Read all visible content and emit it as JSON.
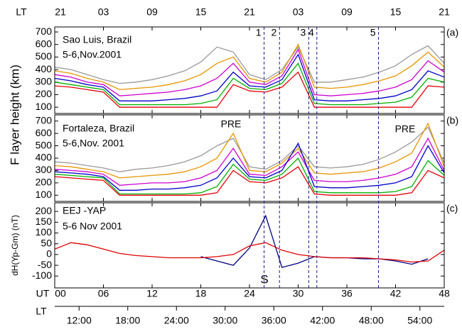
{
  "figure": {
    "x": [
      0,
      2,
      4,
      6,
      8,
      10,
      12,
      14,
      16,
      18,
      20,
      22,
      24,
      26,
      28,
      30,
      32,
      34,
      36,
      38,
      40,
      42,
      44,
      46,
      48
    ],
    "xlim": [
      0,
      48
    ],
    "ut_label": "UT",
    "ut_ticks": [
      {
        "value": 0,
        "label": "00"
      },
      {
        "value": 6,
        "label": "06"
      },
      12,
      18,
      24,
      30,
      36,
      42,
      48
    ],
    "lt_top_label": "LT",
    "lt_top_ticks": [
      {
        "value": 0,
        "label": "21"
      },
      {
        "value": 6,
        "label": "03"
      },
      {
        "value": 12,
        "label": "09"
      },
      {
        "value": 18,
        "label": "15"
      },
      {
        "value": 24,
        "label": "21"
      },
      {
        "value": 30,
        "label": "03"
      },
      {
        "value": 36,
        "label": "09"
      },
      {
        "value": 42,
        "label": "15"
      },
      {
        "value": 48,
        "label": "21"
      }
    ],
    "lt_bottom_label": "LT",
    "lt_bottom_ticks": [
      {
        "value": 3,
        "label": "12:00"
      },
      {
        "value": 9,
        "label": "18:00"
      },
      {
        "value": 15,
        "label": "24:00"
      },
      {
        "value": 21,
        "label": "30:00"
      },
      {
        "value": 27,
        "label": "36:00"
      },
      {
        "value": 33,
        "label": "42:00"
      },
      {
        "value": 39,
        "label": "48:00"
      },
      {
        "value": 45,
        "label": "54:00"
      }
    ],
    "events": [
      {
        "value": 25.8,
        "label": "1"
      },
      {
        "value": 27.7,
        "label": "2"
      },
      {
        "value": 31.3,
        "label": "3"
      },
      {
        "value": 32.3,
        "label": "4"
      },
      {
        "value": 39.9,
        "label": "5"
      }
    ],
    "ylabel_ab": "F layer height (km)"
  },
  "chart_data": [
    {
      "type": "line",
      "panel": "(a)",
      "annotations": [
        "Sao Luis, Brazil",
        "5-6,Nov.2001"
      ],
      "ylim": [
        50,
        740
      ],
      "yticks": [
        100,
        200,
        300,
        400,
        500,
        600,
        700
      ],
      "series": [
        {
          "color": "#999999",
          "values": [
            420,
            400,
            360,
            320,
            290,
            300,
            320,
            350,
            390,
            460,
            580,
            540,
            360,
            320,
            400,
            580,
            300,
            300,
            320,
            340,
            380,
            430,
            520,
            590,
            450
          ]
        },
        {
          "color": "#e69500",
          "values": [
            390,
            370,
            330,
            300,
            240,
            250,
            260,
            280,
            310,
            360,
            450,
            500,
            330,
            300,
            380,
            600,
            260,
            250,
            260,
            280,
            310,
            350,
            430,
            540,
            420
          ]
        },
        {
          "color": "#d000d0",
          "values": [
            360,
            340,
            300,
            280,
            190,
            200,
            210,
            220,
            240,
            270,
            330,
            450,
            300,
            280,
            350,
            560,
            200,
            190,
            200,
            210,
            230,
            260,
            320,
            470,
            380
          ]
        },
        {
          "color": "#0000cc",
          "values": [
            330,
            310,
            280,
            260,
            150,
            150,
            150,
            160,
            170,
            190,
            230,
            380,
            270,
            260,
            320,
            520,
            160,
            150,
            150,
            160,
            170,
            190,
            240,
            390,
            340
          ]
        },
        {
          "color": "#00b000",
          "values": [
            300,
            280,
            260,
            240,
            120,
            120,
            120,
            120,
            120,
            130,
            160,
            330,
            250,
            240,
            290,
            450,
            130,
            120,
            120,
            120,
            130,
            140,
            180,
            330,
            300
          ]
        },
        {
          "color": "#e8000b",
          "values": [
            270,
            260,
            240,
            220,
            100,
            100,
            100,
            100,
            100,
            100,
            100,
            280,
            230,
            220,
            260,
            380,
            100,
            100,
            100,
            100,
            100,
            100,
            100,
            270,
            260
          ]
        }
      ]
    },
    {
      "type": "line",
      "panel": "(b)",
      "annotations": [
        "Fortaleza, Brazil",
        "5-6,Nov. 2001",
        "PRE",
        "PRE"
      ],
      "ylim": [
        50,
        750
      ],
      "yticks": [
        100,
        200,
        300,
        400,
        500,
        600,
        700
      ],
      "series": [
        {
          "color": "#999999",
          "values": [
            370,
            360,
            340,
            320,
            290,
            310,
            320,
            340,
            370,
            420,
            500,
            560,
            330,
            310,
            380,
            500,
            330,
            320,
            330,
            350,
            390,
            450,
            530,
            650,
            360
          ]
        },
        {
          "color": "#e69500",
          "values": [
            340,
            330,
            310,
            290,
            240,
            250,
            260,
            270,
            290,
            330,
            400,
            600,
            300,
            290,
            360,
            480,
            280,
            270,
            280,
            290,
            320,
            370,
            440,
            680,
            330
          ]
        },
        {
          "color": "#d000d0",
          "values": [
            310,
            300,
            290,
            270,
            180,
            190,
            200,
            200,
            210,
            240,
            300,
            480,
            270,
            260,
            330,
            450,
            220,
            210,
            210,
            220,
            240,
            270,
            330,
            560,
            300
          ]
        },
        {
          "color": "#0000cc",
          "values": [
            290,
            280,
            270,
            250,
            140,
            140,
            150,
            150,
            160,
            180,
            240,
            400,
            250,
            240,
            300,
            520,
            170,
            160,
            160,
            170,
            180,
            200,
            250,
            500,
            280
          ]
        },
        {
          "color": "#00b000",
          "values": [
            270,
            260,
            250,
            240,
            110,
            110,
            110,
            110,
            110,
            120,
            170,
            350,
            230,
            220,
            270,
            400,
            130,
            120,
            120,
            120,
            120,
            130,
            170,
            380,
            260
          ]
        },
        {
          "color": "#e8000b",
          "values": [
            250,
            240,
            230,
            220,
            100,
            100,
            100,
            100,
            100,
            100,
            120,
            300,
            210,
            200,
            240,
            330,
            110,
            100,
            100,
            100,
            100,
            100,
            120,
            300,
            240
          ]
        }
      ]
    },
    {
      "type": "line",
      "panel": "(c)",
      "annotations": [
        "EEJ -YAP",
        "5-6 Nov 2001",
        "S"
      ],
      "ylabel": "dH(Yp-Gm) (nT)",
      "ylim": [
        -155,
        240
      ],
      "yticks": [
        -100,
        -50,
        0,
        50,
        100,
        150,
        200
      ],
      "series": [
        {
          "color": "#000080",
          "values": [
            null,
            null,
            null,
            null,
            null,
            null,
            null,
            null,
            null,
            -10,
            -30,
            -50,
            30,
            180,
            -60,
            -40,
            -10,
            -15,
            -15,
            -20,
            -20,
            -30,
            -45,
            -20,
            null
          ]
        },
        {
          "color": "#e00000",
          "values": [
            25,
            55,
            45,
            25,
            5,
            -5,
            -10,
            -15,
            -15,
            -15,
            -10,
            0,
            40,
            55,
            20,
            0,
            -10,
            -15,
            -15,
            -15,
            -20,
            -25,
            -35,
            -30,
            20
          ]
        }
      ]
    }
  ]
}
